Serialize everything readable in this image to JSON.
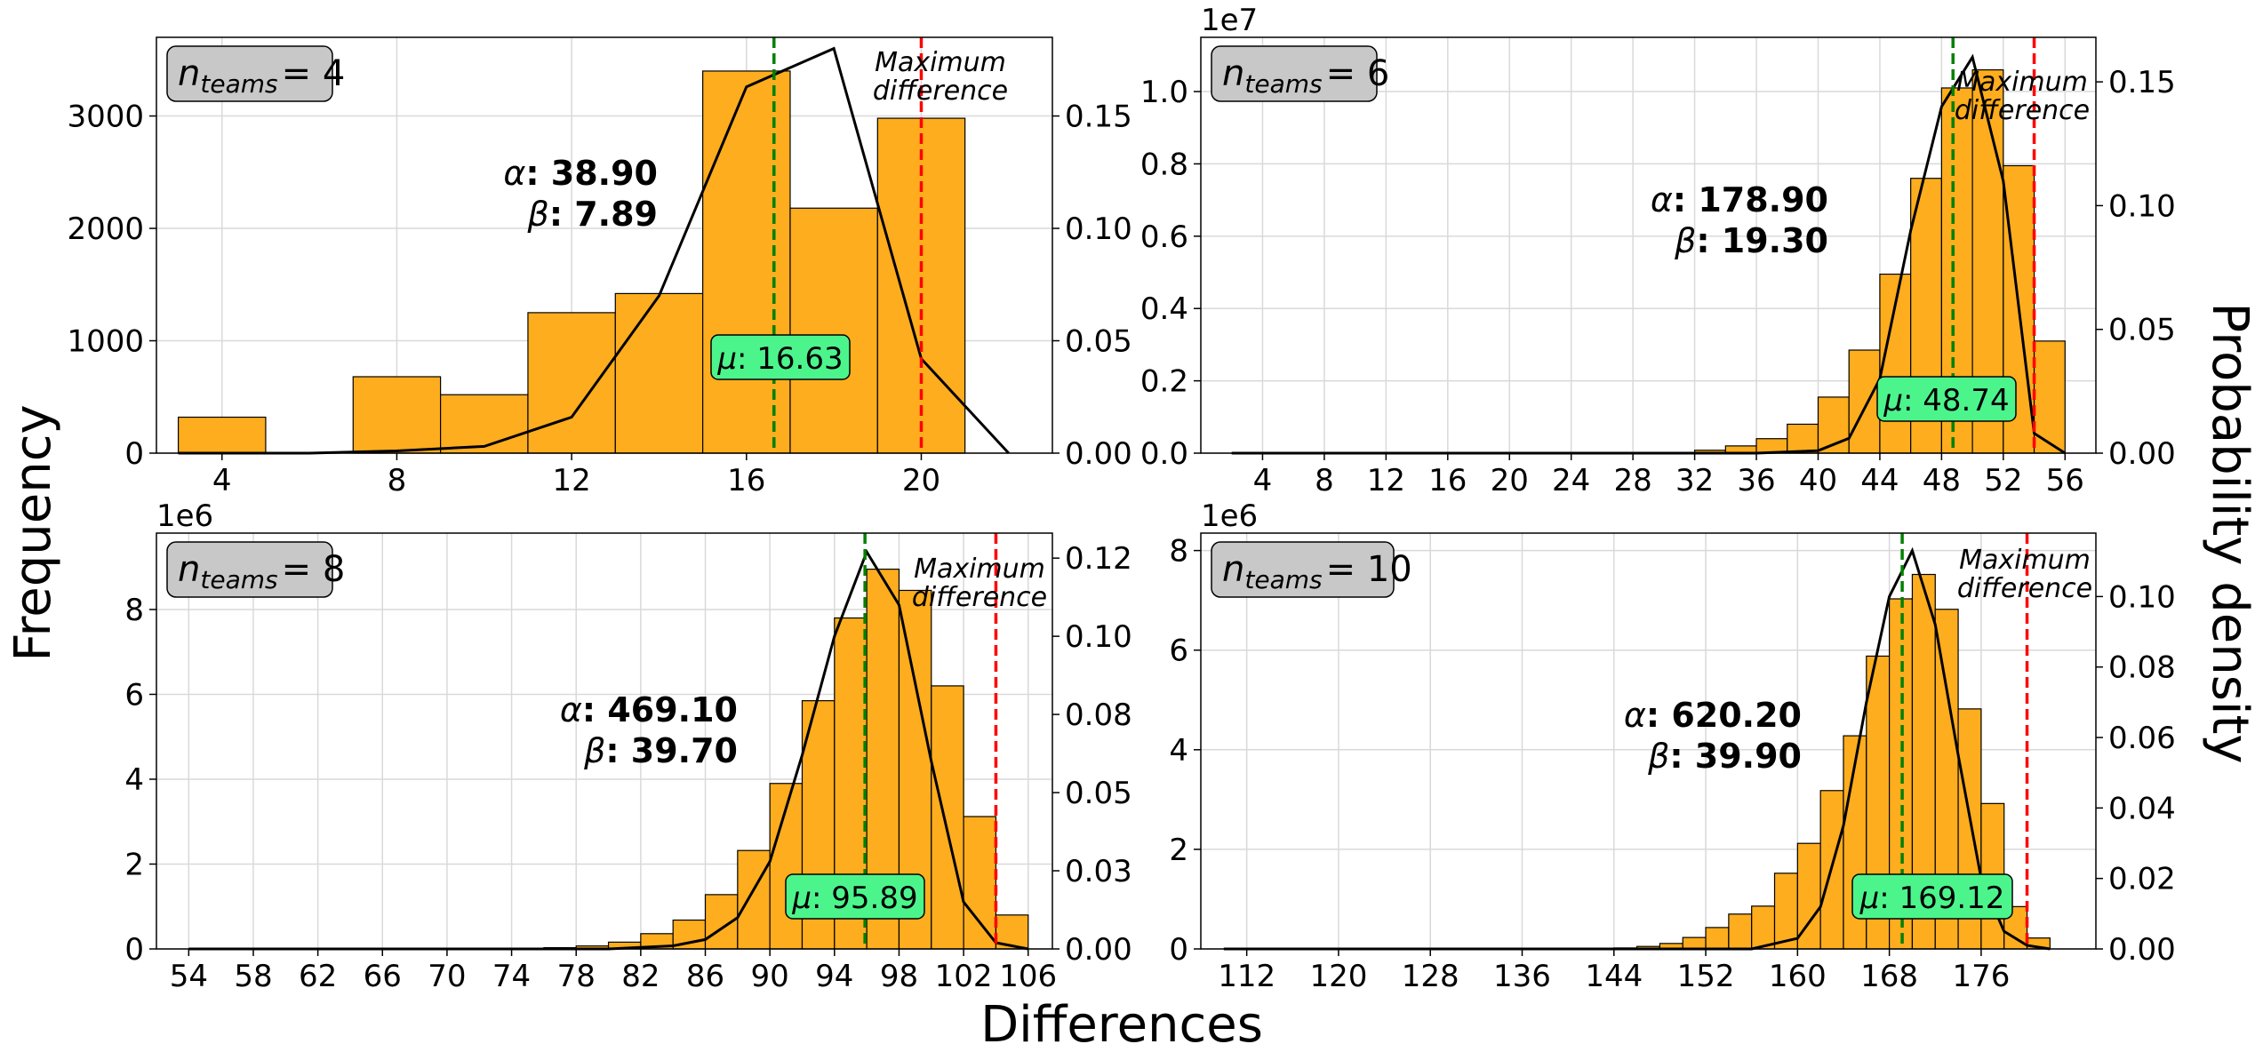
{
  "figure": {
    "xlabel": "Differences",
    "ylabel_left": "Frequency",
    "ylabel_right": "Probability density"
  },
  "colors": {
    "bar": "#fdad1d",
    "bar_edge": "#000000",
    "curve": "#000000",
    "mean_line": "#008000",
    "max_line": "#ff0000",
    "mean_box": "#4cf58c",
    "legend_box": "#c8c8c8",
    "grid": "#d9d9d9"
  },
  "chart_data": [
    {
      "type": "bar",
      "n_teams": "4",
      "title_prefix": "n",
      "title_sub": "teams",
      "title_value": "= 4",
      "alpha_label": "α",
      "alpha_value": ": 38.90",
      "beta_label": "β",
      "beta_value": ": 7.89",
      "mu_label": "μ",
      "mu_value": ": 16.63",
      "mean": 16.63,
      "max_label_line1": "Maximum",
      "max_label_line2": "difference",
      "max_diff": 20,
      "yexponent": "",
      "bins": [
        [
          3,
          5,
          320
        ],
        [
          7,
          9,
          680
        ],
        [
          9,
          11,
          520
        ],
        [
          11,
          13,
          1250
        ],
        [
          13,
          15,
          1420
        ],
        [
          15,
          17,
          3400
        ],
        [
          17,
          19,
          2180
        ],
        [
          19,
          21,
          2980
        ]
      ],
      "curve": [
        [
          3,
          0
        ],
        [
          6,
          0
        ],
        [
          8,
          0.001
        ],
        [
          10,
          0.003
        ],
        [
          12,
          0.016
        ],
        [
          14,
          0.07
        ],
        [
          16,
          0.163
        ],
        [
          18,
          0.18
        ],
        [
          20,
          0.042
        ],
        [
          22,
          0
        ]
      ],
      "xlim": [
        2.5,
        23
      ],
      "ylim": [
        0,
        3700
      ],
      "y2lim": [
        0,
        0.185
      ],
      "xticks": [
        "4",
        "8",
        "12",
        "16",
        "20"
      ],
      "xtick_vals": [
        4,
        8,
        12,
        16,
        20
      ],
      "yticks": [
        "0",
        "1000",
        "2000",
        "3000"
      ],
      "ytick_vals": [
        0,
        1000,
        2000,
        3000
      ],
      "y2ticks": [
        "0.00",
        "0.05",
        "0.10",
        "0.15"
      ],
      "y2tick_vals": [
        0,
        0.05,
        0.1,
        0.15
      ]
    },
    {
      "type": "bar",
      "n_teams": "6",
      "title_prefix": "n",
      "title_sub": "teams",
      "title_value": "= 6",
      "alpha_label": "α",
      "alpha_value": ": 178.90",
      "beta_label": "β",
      "beta_value": ": 19.30",
      "mu_label": "μ",
      "mu_value": ": 48.74",
      "mean": 48.74,
      "max_label_line1": "Maximum",
      "max_label_line2": "difference",
      "max_diff": 54,
      "yexponent": "1e7",
      "bins": [
        [
          30,
          32,
          0.002
        ],
        [
          32,
          34,
          0.008
        ],
        [
          34,
          36,
          0.02
        ],
        [
          36,
          38,
          0.04
        ],
        [
          38,
          40,
          0.08
        ],
        [
          40,
          42,
          0.155
        ],
        [
          42,
          44,
          0.285
        ],
        [
          44,
          46,
          0.495
        ],
        [
          46,
          48,
          0.76
        ],
        [
          48,
          50,
          1.01
        ],
        [
          50,
          52,
          1.06
        ],
        [
          52,
          54,
          0.795
        ],
        [
          54,
          56,
          0.31
        ]
      ],
      "curve": [
        [
          2,
          0
        ],
        [
          30,
          0
        ],
        [
          36,
          0
        ],
        [
          40,
          0.001
        ],
        [
          42,
          0.006
        ],
        [
          44,
          0.03
        ],
        [
          46,
          0.09
        ],
        [
          48,
          0.14
        ],
        [
          50,
          0.16
        ],
        [
          52,
          0.11
        ],
        [
          54,
          0.008
        ],
        [
          56,
          0
        ]
      ],
      "xlim": [
        0,
        58
      ],
      "ylim": [
        0,
        1.15
      ],
      "y2lim": [
        0,
        0.168
      ],
      "xticks": [
        "4",
        "8",
        "12",
        "16",
        "20",
        "24",
        "28",
        "32",
        "36",
        "40",
        "44",
        "48",
        "52",
        "56"
      ],
      "xtick_vals": [
        4,
        8,
        12,
        16,
        20,
        24,
        28,
        32,
        36,
        40,
        44,
        48,
        52,
        56
      ],
      "yticks": [
        "0.0",
        "0.2",
        "0.4",
        "0.6",
        "0.8",
        "1.0"
      ],
      "ytick_vals": [
        0,
        0.2,
        0.4,
        0.6,
        0.8,
        1.0
      ],
      "y2ticks": [
        "0.00",
        "0.05",
        "0.10",
        "0.15"
      ],
      "y2tick_vals": [
        0,
        0.05,
        0.1,
        0.15
      ]
    },
    {
      "type": "bar",
      "n_teams": "8",
      "title_prefix": "n",
      "title_sub": "teams",
      "title_value": "= 8",
      "alpha_label": "α",
      "alpha_value": ": 469.10",
      "beta_label": "β",
      "beta_value": ": 39.70",
      "mu_label": "μ",
      "mu_value": ": 95.89",
      "mean": 95.89,
      "max_label_line1": "Maximum",
      "max_label_line2": "difference",
      "max_diff": 104,
      "yexponent": "1e6",
      "bins": [
        [
          76,
          78,
          0.03
        ],
        [
          78,
          80,
          0.07
        ],
        [
          80,
          82,
          0.16
        ],
        [
          82,
          84,
          0.36
        ],
        [
          84,
          86,
          0.68
        ],
        [
          86,
          88,
          1.28
        ],
        [
          88,
          90,
          2.32
        ],
        [
          90,
          92,
          3.9
        ],
        [
          92,
          94,
          5.85
        ],
        [
          94,
          96,
          7.8
        ],
        [
          96,
          98,
          8.95
        ],
        [
          98,
          100,
          8.45
        ],
        [
          100,
          102,
          6.2
        ],
        [
          102,
          104,
          3.12
        ],
        [
          104,
          106,
          0.8
        ]
      ],
      "curve": [
        [
          54,
          0
        ],
        [
          80,
          0
        ],
        [
          84,
          0.001
        ],
        [
          86,
          0.003
        ],
        [
          88,
          0.01
        ],
        [
          90,
          0.028
        ],
        [
          92,
          0.062
        ],
        [
          94,
          0.1
        ],
        [
          96,
          0.127
        ],
        [
          98,
          0.11
        ],
        [
          100,
          0.06
        ],
        [
          102,
          0.015
        ],
        [
          104,
          0.002
        ],
        [
          106,
          0
        ]
      ],
      "xlim": [
        52,
        107.5
      ],
      "ylim": [
        0,
        9.8
      ],
      "y2lim": [
        0,
        0.133
      ],
      "xticks": [
        "54",
        "58",
        "62",
        "66",
        "70",
        "74",
        "78",
        "82",
        "86",
        "90",
        "94",
        "98",
        "102",
        "106"
      ],
      "xtick_vals": [
        54,
        58,
        62,
        66,
        70,
        74,
        78,
        82,
        86,
        90,
        94,
        98,
        102,
        106
      ],
      "yticks": [
        "0",
        "2",
        "4",
        "6",
        "8"
      ],
      "ytick_vals": [
        0,
        2,
        4,
        6,
        8
      ],
      "y2ticks": [
        "0.00",
        "0.03",
        "0.05",
        "0.08",
        "0.10",
        "0.12"
      ],
      "y2tick_vals": [
        0,
        0.025,
        0.05,
        0.075,
        0.1,
        0.125
      ]
    },
    {
      "type": "bar",
      "n_teams": "10",
      "title_prefix": "n",
      "title_sub": "teams",
      "title_value": "= 10",
      "alpha_label": "α",
      "alpha_value": ": 620.20",
      "beta_label": "β",
      "beta_value": ": 39.90",
      "mu_label": "μ",
      "mu_value": ": 169.12",
      "mean": 169.12,
      "max_label_line1": "Maximum",
      "max_label_line2": "difference",
      "max_diff": 180,
      "yexponent": "1e6",
      "bins": [
        [
          144,
          146,
          0.02
        ],
        [
          146,
          148,
          0.05
        ],
        [
          148,
          150,
          0.11
        ],
        [
          150,
          152,
          0.23
        ],
        [
          152,
          154,
          0.43
        ],
        [
          154,
          156,
          0.7
        ],
        [
          156,
          158,
          0.86
        ],
        [
          158,
          160,
          1.52
        ],
        [
          160,
          162,
          2.12
        ],
        [
          162,
          164,
          3.18
        ],
        [
          164,
          166,
          4.28
        ],
        [
          166,
          168,
          5.88
        ],
        [
          168,
          170,
          7.03
        ],
        [
          170,
          172,
          7.52
        ],
        [
          172,
          174,
          6.82
        ],
        [
          174,
          176,
          4.82
        ],
        [
          176,
          178,
          2.92
        ],
        [
          178,
          180,
          0.85
        ],
        [
          180,
          182,
          0.22
        ]
      ],
      "curve": [
        [
          110,
          0
        ],
        [
          150,
          0
        ],
        [
          156,
          0
        ],
        [
          160,
          0.003
        ],
        [
          162,
          0.012
        ],
        [
          164,
          0.035
        ],
        [
          166,
          0.07
        ],
        [
          168,
          0.1
        ],
        [
          170,
          0.113
        ],
        [
          172,
          0.092
        ],
        [
          174,
          0.055
        ],
        [
          176,
          0.02
        ],
        [
          178,
          0.005
        ],
        [
          180,
          0.001
        ],
        [
          182,
          0
        ]
      ],
      "xlim": [
        108,
        186
      ],
      "ylim": [
        0,
        8.35
      ],
      "y2lim": [
        0,
        0.118
      ],
      "xticks": [
        "112",
        "120",
        "128",
        "136",
        "144",
        "152",
        "160",
        "168",
        "176"
      ],
      "xtick_vals": [
        112,
        120,
        128,
        136,
        144,
        152,
        160,
        168,
        176
      ],
      "yticks": [
        "0",
        "2",
        "4",
        "6",
        "8"
      ],
      "ytick_vals": [
        0,
        2,
        4,
        6,
        8
      ],
      "y2ticks": [
        "0.00",
        "0.02",
        "0.04",
        "0.06",
        "0.08",
        "0.10"
      ],
      "y2tick_vals": [
        0,
        0.02,
        0.04,
        0.06,
        0.08,
        0.1
      ]
    }
  ]
}
